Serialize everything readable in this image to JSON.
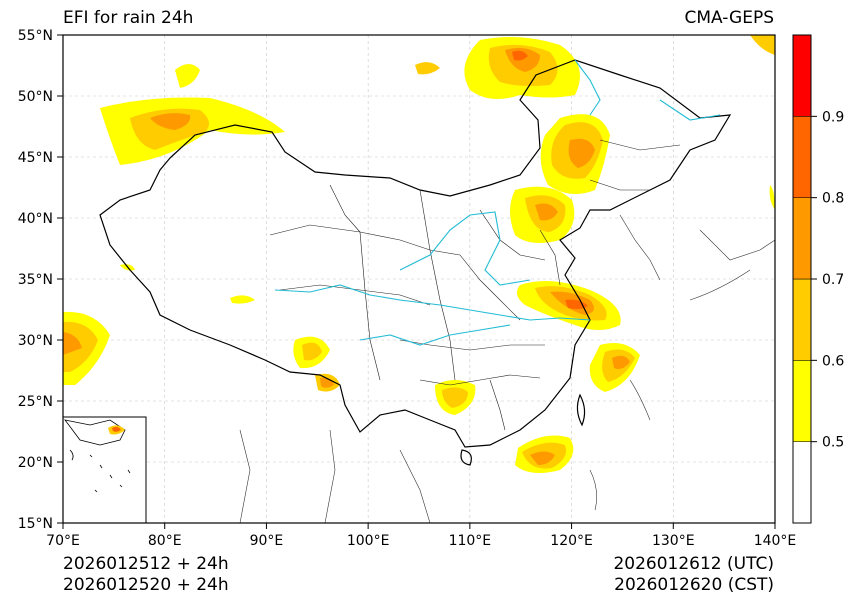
{
  "header": {
    "title_left": "EFI for rain 24h",
    "title_right": "CMA-GEPS"
  },
  "axes": {
    "x_ticks": [
      "70°E",
      "80°E",
      "90°E",
      "100°E",
      "110°E",
      "120°E",
      "130°E",
      "140°E"
    ],
    "x_values": [
      70,
      80,
      90,
      100,
      110,
      120,
      130,
      140
    ],
    "y_ticks": [
      "15°N",
      "20°N",
      "25°N",
      "30°N",
      "35°N",
      "40°N",
      "45°N",
      "50°N",
      "55°N"
    ],
    "y_values": [
      15,
      20,
      25,
      30,
      35,
      40,
      45,
      50,
      55
    ],
    "lon_range": [
      70,
      140
    ],
    "lat_range": [
      15,
      55
    ],
    "grid": true
  },
  "colorbar": {
    "levels": [
      0.5,
      0.6,
      0.7,
      0.8,
      0.9
    ],
    "labels": [
      "0.5",
      "0.6",
      "0.7",
      "0.8",
      "0.9"
    ],
    "colors": [
      "#ffffff",
      "#ffff00",
      "#ffcc00",
      "#ff9900",
      "#ff6600",
      "#ff0000"
    ],
    "range": [
      0.4,
      1.0
    ]
  },
  "footer": {
    "init_utc": "2026012512 + 24h",
    "init_cst": "2026012520 + 24h",
    "valid_utc": "2026012612 (UTC)",
    "valid_cst": "2026012620 (CST)"
  }
}
